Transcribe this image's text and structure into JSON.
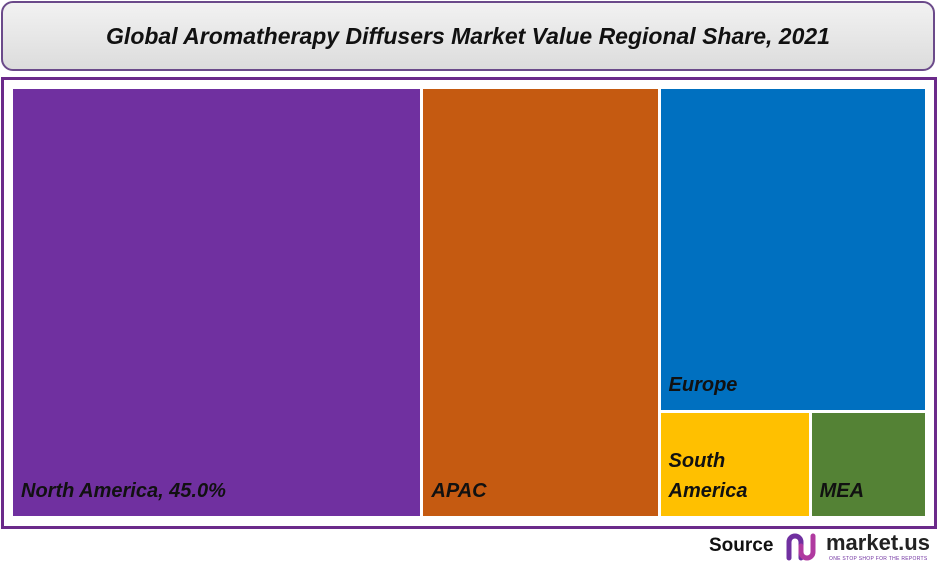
{
  "chart_data": {
    "type": "treemap",
    "title": "Global Aromatherapy Diffusers Market Value Regional Share, 2021",
    "categories": [
      "North America, 45.0%",
      "APAC",
      "Europe",
      "South America",
      "MEA"
    ],
    "values": [
      45,
      26,
      22,
      4,
      3
    ],
    "colors": [
      "#7030a0",
      "#c55a11",
      "#0070c0",
      "#ffc000",
      "#548235"
    ]
  },
  "source": {
    "label": "Source",
    "brand": "market.us",
    "tagline": "ONE STOP SHOP FOR THE REPORTS"
  }
}
